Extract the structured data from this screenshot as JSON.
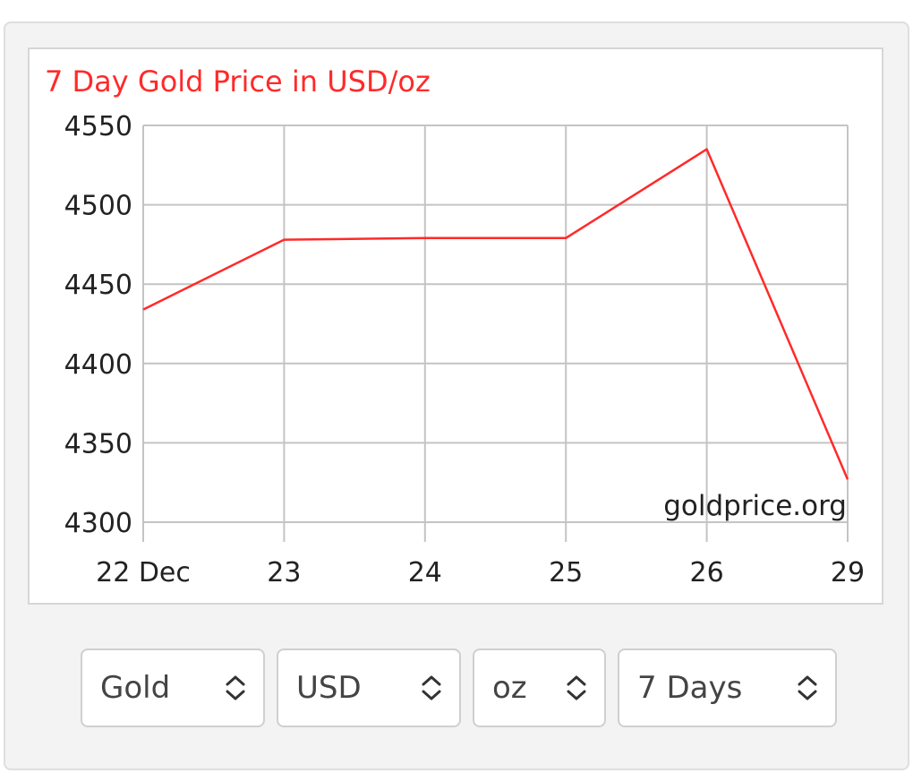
{
  "chart_data": {
    "type": "line",
    "title": "7 Day Gold Price in USD/oz",
    "categories": [
      "22 Dec",
      "23",
      "24",
      "25",
      "26",
      "29"
    ],
    "values": [
      4434,
      4478,
      4479,
      4479,
      4535,
      4327
    ],
    "ylim": [
      4300,
      4550
    ],
    "yticks": [
      "4550",
      "4500",
      "4450",
      "4400",
      "4350",
      "4300"
    ],
    "xlabel": "",
    "ylabel": "",
    "grid": true,
    "watermark": "goldprice.org",
    "line_color": "#ff2a2a"
  },
  "controls": {
    "metal": "Gold",
    "currency": "USD",
    "unit": "oz",
    "period": "7 Days"
  },
  "icons": {
    "select_arrow": "chevron-up-down-icon"
  }
}
